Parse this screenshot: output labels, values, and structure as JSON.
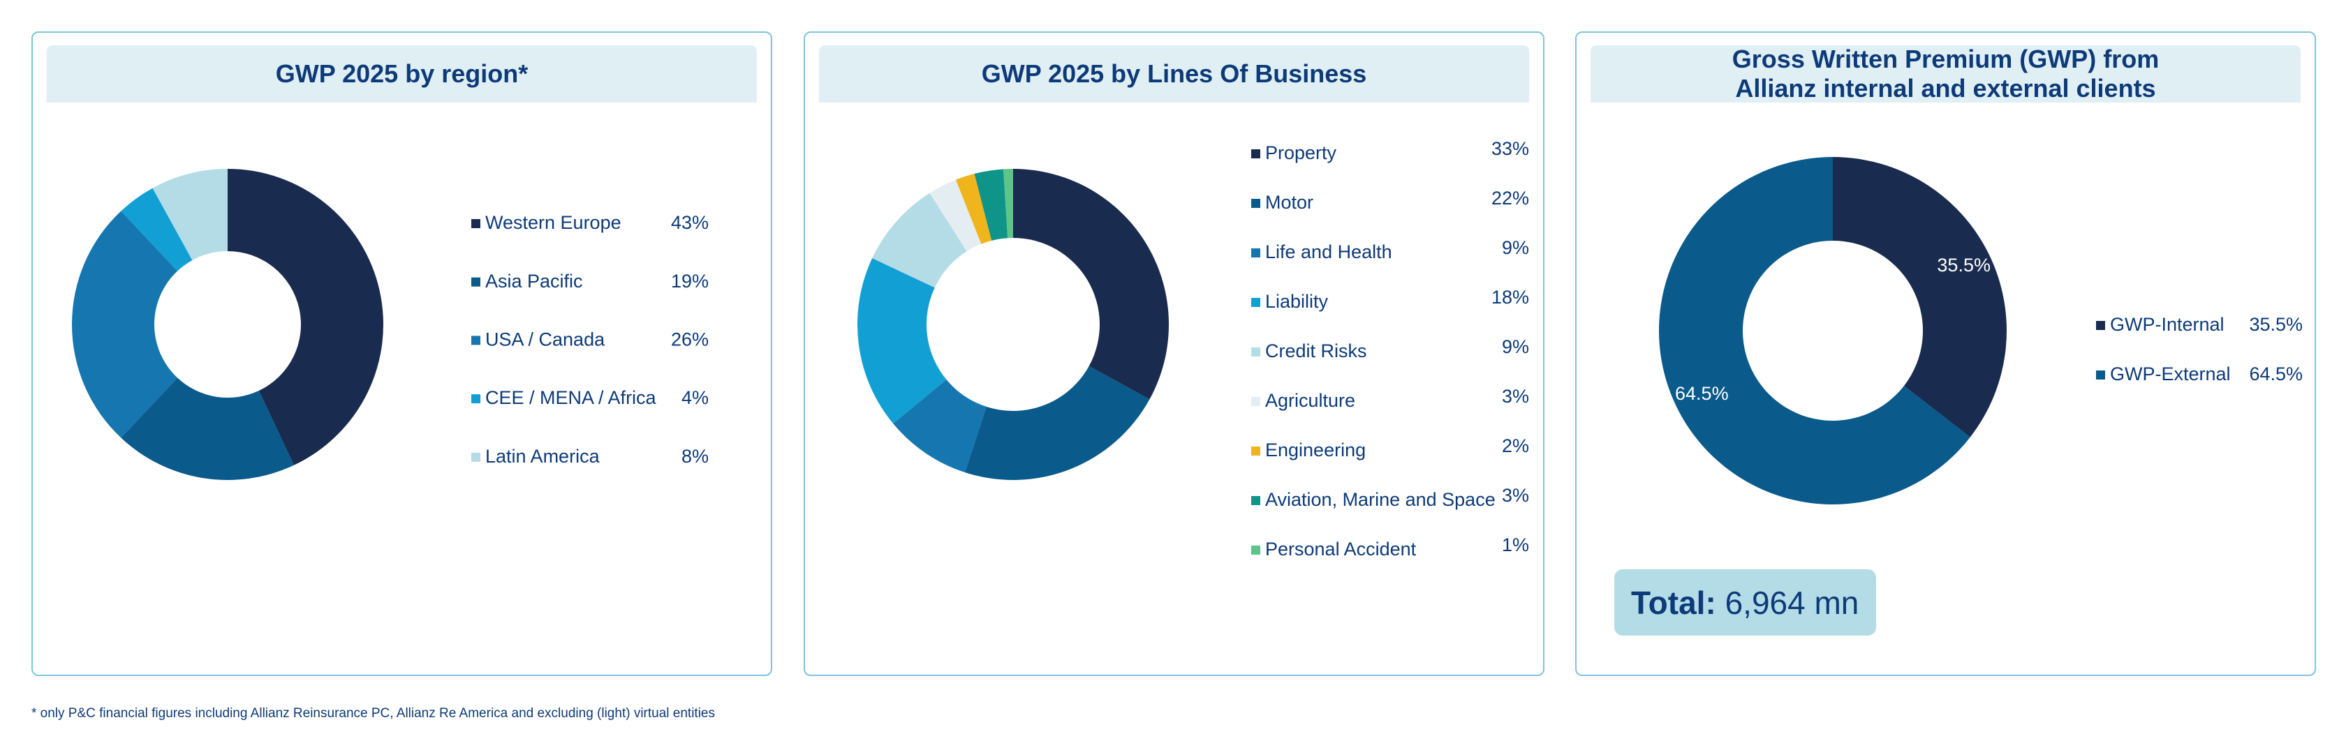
{
  "chart_data": [
    {
      "type": "pie",
      "title": "GWP 2025 by region*",
      "categories": [
        "Western Europe",
        "Asia Pacific",
        "USA / Canada",
        "CEE / MENA / Africa",
        "Latin America"
      ],
      "values": [
        43,
        19,
        26,
        4,
        8
      ],
      "value_labels": [
        "43%",
        "19%",
        "26%",
        "4%",
        "8%"
      ],
      "colors": [
        "#1a2b50",
        "#0a5a8c",
        "#1576b0",
        "#12a0d4",
        "#b4dce6"
      ]
    },
    {
      "type": "pie",
      "title": "GWP 2025 by Lines Of Business",
      "categories": [
        "Property",
        "Motor",
        "Life and Health",
        "Liability",
        "Credit Risks",
        "Agriculture",
        "Engineering",
        "Aviation, Marine and Space",
        "Personal Accident"
      ],
      "values": [
        33,
        22,
        9,
        18,
        9,
        3,
        2,
        3,
        1
      ],
      "value_labels": [
        "33%",
        "22%",
        "9%",
        "18%",
        "9%",
        "3%",
        "2%",
        "3%",
        "1%"
      ],
      "colors": [
        "#1a2b50",
        "#0a5a8c",
        "#1576b0",
        "#12a0d4",
        "#b4dce6",
        "#e4eef2",
        "#f0b41c",
        "#0e9488",
        "#5ec48a"
      ]
    },
    {
      "type": "pie",
      "title": "Gross Written Premium (GWP) from\nAllianz internal and external clients",
      "categories": [
        "GWP-Internal",
        "GWP-External"
      ],
      "values": [
        35.5,
        64.5
      ],
      "value_labels": [
        "35.5%",
        "64.5%"
      ],
      "colors": [
        "#1a2b50",
        "#0a5a8c"
      ],
      "slice_labels": true,
      "total_label": "Total:",
      "total_value": "6,964 mn"
    }
  ],
  "footnote": "* only P&C financial figures including Allianz Reinsurance PC, Allianz Re America and excluding (light) virtual entities"
}
